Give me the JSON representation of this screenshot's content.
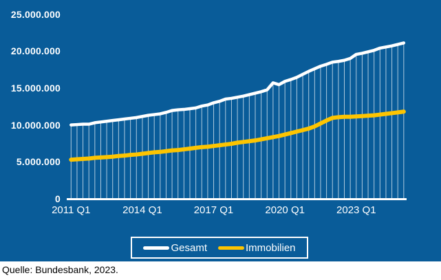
{
  "colors": {
    "background": "#095c99",
    "gesamt": "#ffffff",
    "immobilien": "#fdc400",
    "droplines": "rgba(255,255,255,0.68)",
    "axis": "#ffffff",
    "footer_background": "#ffffff",
    "footer_text": "#000000"
  },
  "legend": {
    "items": [
      {
        "label": "Gesamt",
        "color": "#ffffff"
      },
      {
        "label": "Immobilien",
        "color": "#fdc400"
      }
    ]
  },
  "footer": {
    "source": "Quelle: Bundesbank, 2023."
  },
  "chart_data": {
    "type": "line",
    "title": "",
    "xlabel": "",
    "ylabel": "",
    "ylim": [
      0,
      25000000
    ],
    "grid": "vertical drop lines from Gesamt series to x-axis at every quarter",
    "legend_position": "bottom",
    "y_tick_labels": [
      "0",
      "5.000.000",
      "10.000.000",
      "15.000.000",
      "20.000.000",
      "25.000.000"
    ],
    "x_tick_labels": [
      "2011 Q1",
      "2014 Q1",
      "2017 Q1",
      "2020 Q1",
      "2023 Q1"
    ],
    "x_tick_indices": [
      0,
      12,
      24,
      36,
      48
    ],
    "x": [
      "2011 Q1",
      "2011 Q2",
      "2011 Q3",
      "2011 Q4",
      "2012 Q1",
      "2012 Q2",
      "2012 Q3",
      "2012 Q4",
      "2013 Q1",
      "2013 Q2",
      "2013 Q3",
      "2013 Q4",
      "2014 Q1",
      "2014 Q2",
      "2014 Q3",
      "2014 Q4",
      "2015 Q1",
      "2015 Q2",
      "2015 Q3",
      "2015 Q4",
      "2016 Q1",
      "2016 Q2",
      "2016 Q3",
      "2016 Q4",
      "2017 Q1",
      "2017 Q2",
      "2017 Q3",
      "2017 Q4",
      "2018 Q1",
      "2018 Q2",
      "2018 Q3",
      "2018 Q4",
      "2019 Q1",
      "2019 Q2",
      "2019 Q3",
      "2019 Q4",
      "2020 Q1",
      "2020 Q2",
      "2020 Q3",
      "2020 Q4",
      "2021 Q1",
      "2021 Q2",
      "2021 Q3",
      "2021 Q4",
      "2022 Q1",
      "2022 Q2",
      "2022 Q3",
      "2022 Q4",
      "2023 Q1",
      "2023 Q2",
      "2023 Q3",
      "2023 Q4",
      "2024 Q1",
      "2024 Q2",
      "2024 Q3",
      "2024 Q4",
      "2025 Q1"
    ],
    "series": [
      {
        "name": "Gesamt",
        "color": "#ffffff",
        "values": [
          10000000,
          10050000,
          10100000,
          10100000,
          10300000,
          10400000,
          10500000,
          10600000,
          10700000,
          10800000,
          10900000,
          11000000,
          11150000,
          11300000,
          11400000,
          11500000,
          11700000,
          11950000,
          12050000,
          12100000,
          12200000,
          12300000,
          12550000,
          12700000,
          13000000,
          13200000,
          13500000,
          13600000,
          13750000,
          13900000,
          14100000,
          14300000,
          14500000,
          14750000,
          15700000,
          15450000,
          15900000,
          16150000,
          16450000,
          16850000,
          17250000,
          17600000,
          17950000,
          18200000,
          18500000,
          18600000,
          18750000,
          19000000,
          19550000,
          19700000,
          19900000,
          20100000,
          20400000,
          20550000,
          20700000,
          20900000,
          21100000
        ]
      },
      {
        "name": "Immobilien",
        "color": "#fdc400",
        "values": [
          5300000,
          5350000,
          5400000,
          5450000,
          5550000,
          5600000,
          5650000,
          5700000,
          5800000,
          5850000,
          5950000,
          6000000,
          6100000,
          6200000,
          6300000,
          6350000,
          6450000,
          6550000,
          6600000,
          6700000,
          6800000,
          6900000,
          7000000,
          7050000,
          7150000,
          7250000,
          7350000,
          7450000,
          7600000,
          7700000,
          7800000,
          7900000,
          8050000,
          8200000,
          8350000,
          8500000,
          8700000,
          8900000,
          9100000,
          9300000,
          9500000,
          9800000,
          10200000,
          10600000,
          10950000,
          11050000,
          11100000,
          11100000,
          11150000,
          11200000,
          11250000,
          11300000,
          11400000,
          11500000,
          11600000,
          11700000,
          11800000
        ]
      }
    ]
  }
}
